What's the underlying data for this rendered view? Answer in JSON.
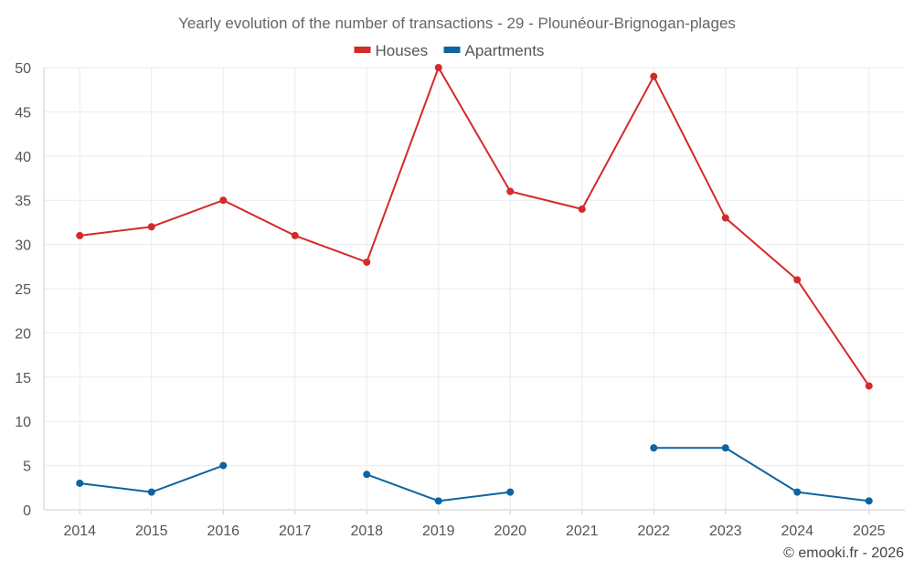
{
  "chart_data": {
    "type": "line",
    "title": "Yearly evolution of the number of transactions - 29 - Plounéour-Brignogan-plages",
    "categories": [
      "2014",
      "2015",
      "2016",
      "2017",
      "2018",
      "2019",
      "2020",
      "2021",
      "2022",
      "2023",
      "2024",
      "2025"
    ],
    "y_ticks": [
      0,
      5,
      10,
      15,
      20,
      25,
      30,
      35,
      40,
      45,
      50
    ],
    "ylim": [
      0,
      50
    ],
    "xlabel": "",
    "ylabel": "",
    "grid": true,
    "legend_position": "top-center",
    "series": [
      {
        "name": "Houses",
        "color": "#d42a2a",
        "values": [
          31,
          32,
          35,
          31,
          28,
          50,
          36,
          34,
          49,
          33,
          26,
          14
        ]
      },
      {
        "name": "Apartments",
        "color": "#0d64a0",
        "values": [
          3,
          2,
          5,
          null,
          4,
          1,
          2,
          null,
          7,
          7,
          2,
          1
        ]
      }
    ]
  },
  "watermark": "© emooki.fr - 2026"
}
